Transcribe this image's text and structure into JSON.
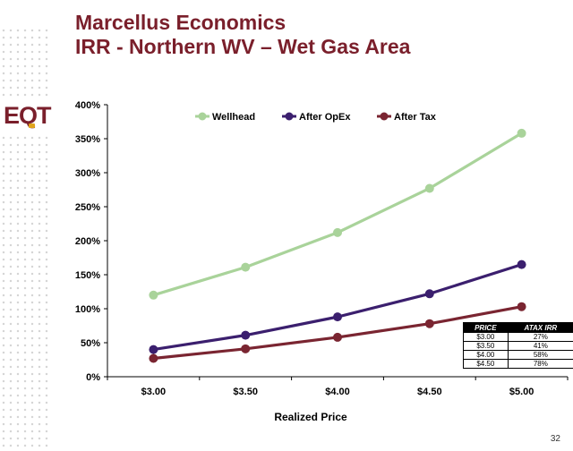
{
  "title_line1": "Marcellus Economics",
  "title_line2": "IRR - Northern WV – Wet Gas Area",
  "logo_text": "EQT",
  "page_number": "32",
  "colors": {
    "title": "#7a1f2b",
    "wellhead": "#a9d39a",
    "after_opex": "#3b1f6e",
    "after_tax": "#7a2531"
  },
  "chart_data": {
    "type": "line",
    "categories": [
      "$3.00",
      "$3.50",
      "$4.00",
      "$4.50",
      "$5.00"
    ],
    "series": [
      {
        "name": "Wellhead",
        "values": [
          120,
          161,
          212,
          277,
          358
        ],
        "color": "#a9d39a"
      },
      {
        "name": "After OpEx",
        "values": [
          40,
          61,
          88,
          122,
          165
        ],
        "color": "#3b1f6e"
      },
      {
        "name": "After Tax",
        "values": [
          27,
          41,
          58,
          78,
          103
        ],
        "color": "#7a2531"
      }
    ],
    "xlabel": "Realized Price",
    "ylabel": "",
    "ylim": [
      0,
      400
    ],
    "yticks": [
      "0%",
      "50%",
      "100%",
      "150%",
      "200%",
      "250%",
      "300%",
      "350%",
      "400%"
    ],
    "legend": "top-center",
    "grid": false
  },
  "table": {
    "headers": [
      "PRICE",
      "ATAX IRR"
    ],
    "rows": [
      [
        "$3.00",
        "27%"
      ],
      [
        "$3.50",
        "41%"
      ],
      [
        "$4.00",
        "58%"
      ],
      [
        "$4.50",
        "78%"
      ]
    ]
  }
}
